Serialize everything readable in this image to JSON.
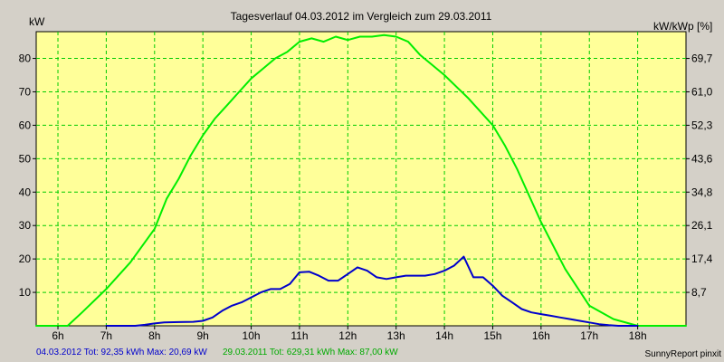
{
  "chart_data": {
    "type": "line",
    "title": "Tagesverlauf 04.03.2012 im Vergleich zum 29.03.2011",
    "ylabel": "kW",
    "y2label": "kW/kWp [%]",
    "xlim": [
      5.55,
      19.0
    ],
    "ylim": [
      0,
      88
    ],
    "x_ticks": [
      6,
      7,
      8,
      9,
      10,
      11,
      12,
      13,
      14,
      15,
      16,
      17,
      18
    ],
    "x_tick_labels": [
      "6h",
      "7h",
      "8h",
      "9h",
      "10h",
      "11h",
      "12h",
      "13h",
      "14h",
      "15h",
      "16h",
      "17h",
      "18h"
    ],
    "y_ticks": [
      10,
      20,
      30,
      40,
      50,
      60,
      70,
      80
    ],
    "y_tick_labels": [
      "10",
      "20",
      "30",
      "40",
      "50",
      "60",
      "70",
      "80"
    ],
    "y2_tick_labels": [
      "8,7",
      "17,4",
      "26,1",
      "34,8",
      "43,6",
      "52,3",
      "61,0",
      "69,7"
    ],
    "grid": true,
    "background_color": "#ffff99",
    "series": [
      {
        "name": "29.03.2011",
        "color": "#00ee00",
        "x": [
          5.55,
          6.2,
          6.5,
          7.0,
          7.5,
          8.0,
          8.25,
          8.5,
          8.75,
          9.0,
          9.25,
          9.5,
          9.75,
          10.0,
          10.25,
          10.5,
          10.75,
          11.0,
          11.25,
          11.5,
          11.75,
          12.0,
          12.25,
          12.5,
          12.75,
          13.0,
          13.25,
          13.5,
          13.75,
          14.0,
          14.5,
          15.0,
          15.25,
          15.5,
          16.0,
          16.5,
          17.0,
          17.5,
          18.0,
          18.4,
          18.7,
          19.0
        ],
        "y": [
          0,
          0,
          4,
          11,
          19,
          29,
          38,
          44,
          51,
          57,
          62,
          66,
          70,
          74,
          77,
          80,
          82,
          85,
          86,
          85,
          86.5,
          85.5,
          86.5,
          86.5,
          87,
          86.5,
          85,
          81,
          78,
          75,
          68,
          60,
          54,
          47,
          31,
          17,
          6,
          2,
          0,
          0,
          0,
          0
        ]
      },
      {
        "name": "04.03.2012",
        "color": "#0000cc",
        "x": [
          7.0,
          7.6,
          7.8,
          8.0,
          8.2,
          8.5,
          8.8,
          9.0,
          9.2,
          9.4,
          9.6,
          9.8,
          10.0,
          10.2,
          10.4,
          10.6,
          10.8,
          11.0,
          11.2,
          11.4,
          11.6,
          11.8,
          12.0,
          12.2,
          12.4,
          12.6,
          12.8,
          13.0,
          13.2,
          13.4,
          13.6,
          13.8,
          14.0,
          14.2,
          14.4,
          14.6,
          14.8,
          15.0,
          15.2,
          15.4,
          15.6,
          15.8,
          16.0,
          16.2,
          16.4,
          16.6,
          16.8,
          17.0,
          17.2,
          17.4,
          17.6,
          17.8,
          18.0
        ],
        "y": [
          0,
          0,
          0.3,
          0.7,
          1,
          1.1,
          1.2,
          1.5,
          2.5,
          4.5,
          6,
          7,
          8.5,
          10,
          11,
          11,
          12.5,
          16,
          16.2,
          15,
          13.5,
          13.5,
          15.5,
          17.5,
          16.5,
          14.5,
          14,
          14.5,
          15,
          15,
          15,
          15.5,
          16.5,
          18,
          20.69,
          14.5,
          14.5,
          12,
          9,
          7,
          5,
          4,
          3.5,
          3,
          2.5,
          2,
          1.5,
          1,
          0.5,
          0.2,
          0,
          0,
          0
        ]
      }
    ]
  },
  "footer": {
    "series2_label": "04.03.2012 Tot: 92,35 kWh Max: 20,69 kW",
    "series1_label": "29.03.2011 Tot: 629,31 kWh Max: 87,00 kW",
    "credit": "SunnyReport pinxit"
  }
}
